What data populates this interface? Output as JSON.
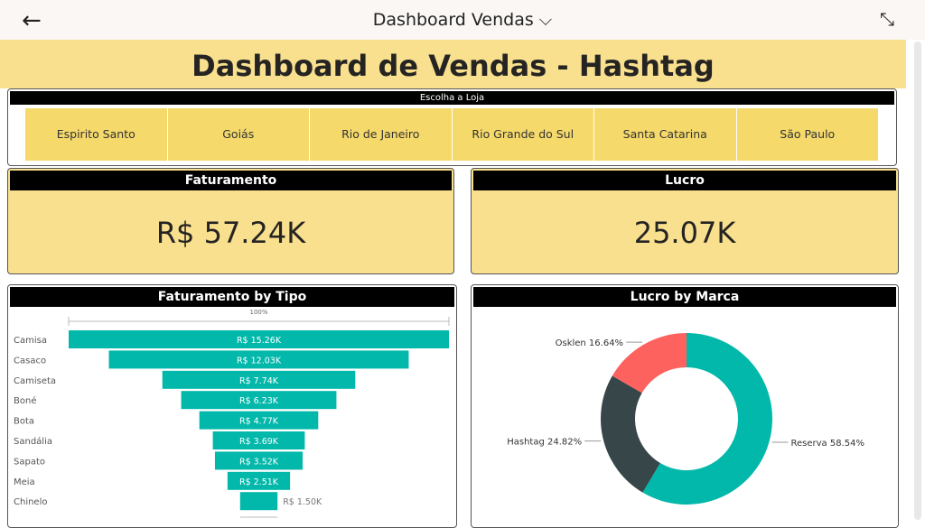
{
  "topbar": {
    "title": "Dashboard Vendas ⌵",
    "back_icon": "←",
    "collapse_icon": "⤡"
  },
  "banner": {
    "title": "Dashboard de Vendas - Hashtag"
  },
  "slicer": {
    "title": "Escolha a Loja",
    "stores": [
      "Espirito Santo",
      "Goiás",
      "Rio de Janeiro",
      "Rio Grande do Sul",
      "Santa Catarina",
      "São Paulo"
    ]
  },
  "cards": {
    "faturamento": {
      "title": "Faturamento",
      "value": "R$ 57.24K"
    },
    "lucro": {
      "title": "Lucro",
      "value": "25.07K"
    }
  },
  "chart_data": [
    {
      "type": "funnel",
      "title": "Faturamento by Tipo",
      "top_label": "100%",
      "categories": [
        "Camisa",
        "Casaco",
        "Camiseta",
        "Boné",
        "Bota",
        "Sandália",
        "Sapato",
        "Meia",
        "Chinelo"
      ],
      "values": [
        15.26,
        12.03,
        7.74,
        6.23,
        4.77,
        3.69,
        3.52,
        2.51,
        1.5
      ],
      "labels": [
        "R$ 15.26K",
        "R$ 12.03K",
        "R$ 7.74K",
        "R$ 6.23K",
        "R$ 4.77K",
        "R$ 3.69K",
        "R$ 3.52K",
        "R$ 2.51K",
        "R$ 1.50K"
      ],
      "color": "#01b8aa"
    },
    {
      "type": "pie",
      "title": "Lucro by Marca",
      "donut": true,
      "slices": [
        {
          "name": "Reserva",
          "value": 58.54,
          "label": "Reserva 58.54%",
          "color": "#01b8aa"
        },
        {
          "name": "Hashtag",
          "value": 24.82,
          "label": "Hashtag 24.82%",
          "color": "#374649"
        },
        {
          "name": "Osklen",
          "value": 16.64,
          "label": "Osklen 16.64%",
          "color": "#fd625e"
        }
      ]
    }
  ]
}
